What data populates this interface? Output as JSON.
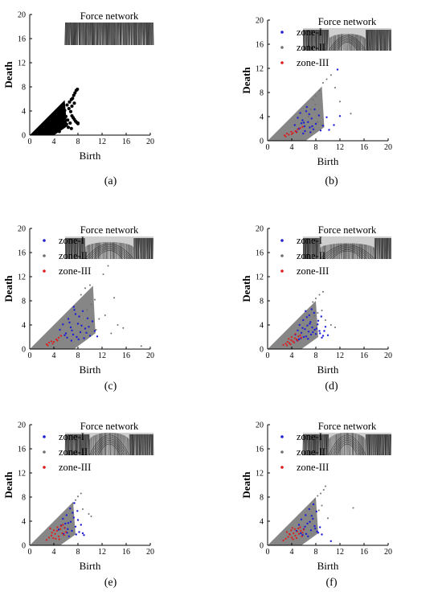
{
  "colors": {
    "zone-I": "#1f1fd6",
    "zone-II": "#707070",
    "zone-III": "#e01a1a",
    "all-points": "#000000",
    "diagonal-band": "#808080",
    "force-network-dark": "#141414",
    "force-network-light": "#d8d8d8"
  },
  "chart_data": [
    {
      "panel_label": "(a)",
      "type": "scatter",
      "xlabel": "Birth",
      "ylabel": "Death",
      "xlim": [
        0,
        20
      ],
      "ylim": [
        0,
        20
      ],
      "xticks": [
        "0",
        "4",
        "8",
        "12",
        "16",
        "20"
      ],
      "yticks": [
        "0",
        "4",
        "8",
        "12",
        "16",
        "20"
      ],
      "grid": false,
      "inset": {
        "title": "Force network",
        "shape": "flat"
      },
      "legend": [],
      "series": [
        {
          "key": "all",
          "color_key": "all-points",
          "diagonal_band_max": 5.8,
          "x": [
            6.2,
            6.5,
            6.8,
            7.0,
            7.2,
            7.4,
            7.6,
            7.8,
            8.0,
            6.6,
            6.9,
            7.1,
            7.3,
            7.5,
            6.0,
            6.3,
            5.8,
            7.7,
            7.9,
            5.5,
            6.1,
            6.7,
            7.0,
            7.4,
            8.0,
            5.2,
            5.6,
            6.4,
            6.9,
            4.9
          ],
          "y": [
            5.0,
            4.4,
            3.9,
            3.2,
            2.9,
            2.6,
            2.3,
            2.1,
            2.0,
            5.5,
            5.9,
            6.1,
            6.6,
            7.0,
            3.1,
            2.5,
            4.1,
            7.4,
            7.6,
            3.6,
            1.8,
            2.0,
            4.8,
            5.3,
            1.9,
            1.5,
            2.2,
            1.3,
            1.1,
            0.6
          ],
          "size": 3.2
        }
      ]
    },
    {
      "panel_label": "(b)",
      "type": "scatter",
      "xlabel": "Birth",
      "ylabel": "Death",
      "xlim": [
        0,
        20
      ],
      "ylim": [
        0,
        20
      ],
      "xticks": [
        "0",
        "4",
        "8",
        "12",
        "16",
        "20"
      ],
      "yticks": [
        "0",
        "4",
        "8",
        "12",
        "16",
        "20"
      ],
      "grid": false,
      "inset": {
        "title": "Force network",
        "shape": "arch-small"
      },
      "legend": [
        "zone-I",
        "zone-II",
        "zone-III"
      ],
      "series": [
        {
          "key": "zone-II",
          "color_key": "zone-II",
          "diagonal_band_max": 9.0,
          "x": [
            7.5,
            8.0,
            8.6,
            9.2,
            9.8,
            10.5,
            11.2,
            12.0,
            13.8,
            7.2,
            8.3,
            9.0,
            6.8,
            7.9
          ],
          "y": [
            6.8,
            7.4,
            8.3,
            9.6,
            10.2,
            10.9,
            8.8,
            6.5,
            4.5,
            5.2,
            3.1,
            2.6,
            4.0,
            6.0
          ],
          "size": 1.6
        },
        {
          "key": "zone-I",
          "color_key": "zone-I",
          "x": [
            4.5,
            5.0,
            5.4,
            5.8,
            6.1,
            6.4,
            6.7,
            7.0,
            7.3,
            7.6,
            8.0,
            8.5,
            9.2,
            10.2,
            11.6,
            12.0,
            6.2,
            5.6,
            7.8,
            4.8,
            6.9,
            5.2,
            7.1,
            6.0,
            8.8,
            9.8,
            11.0,
            6.5,
            7.4,
            5.9
          ],
          "y": [
            2.6,
            3.8,
            4.6,
            3.4,
            2.4,
            4.9,
            3.1,
            2.2,
            3.7,
            1.9,
            2.8,
            4.2,
            2.5,
            1.8,
            11.8,
            4.1,
            1.6,
            2.9,
            5.2,
            1.5,
            4.4,
            2.0,
            1.4,
            3.0,
            1.7,
            3.9,
            2.6,
            5.6,
            2.4,
            1.2
          ],
          "size": 1.9
        },
        {
          "key": "zone-III",
          "color_key": "zone-III",
          "x": [
            2.8,
            3.2,
            3.5,
            3.9,
            4.2,
            4.6,
            5.0,
            5.4,
            5.8,
            3.0,
            4.0,
            4.8
          ],
          "y": [
            0.9,
            1.2,
            1.0,
            1.5,
            1.3,
            1.6,
            1.9,
            2.1,
            2.3,
            0.7,
            1.1,
            1.4
          ],
          "size": 1.7
        }
      ]
    },
    {
      "panel_label": "(c)",
      "type": "scatter",
      "xlabel": "Birth",
      "ylabel": "Death",
      "xlim": [
        0,
        20
      ],
      "ylim": [
        0,
        20
      ],
      "xticks": [
        "0",
        "4",
        "8",
        "12",
        "16",
        "20"
      ],
      "yticks": [
        "0",
        "4",
        "8",
        "12",
        "16",
        "20"
      ],
      "grid": false,
      "inset": {
        "title": "Force network",
        "shape": "arch-mid"
      },
      "legend": [
        "zone-I",
        "zone-II",
        "zone-III"
      ],
      "series": [
        {
          "key": "zone-II",
          "color_key": "zone-II",
          "diagonal_band_max": 10.5,
          "x": [
            8.5,
            9.2,
            10.0,
            10.8,
            11.5,
            12.2,
            13.0,
            14.0,
            14.6,
            15.5,
            18.5,
            9.5,
            11.0,
            12.5,
            13.5,
            10.2
          ],
          "y": [
            9.0,
            10.1,
            10.6,
            8.2,
            5.0,
            12.4,
            13.8,
            8.5,
            4.0,
            3.5,
            0.5,
            6.5,
            3.2,
            5.6,
            2.6,
            7.4
          ],
          "size": 1.6
        },
        {
          "key": "zone-I",
          "color_key": "zone-I",
          "x": [
            5.0,
            5.5,
            6.0,
            6.4,
            6.8,
            7.2,
            7.6,
            8.0,
            8.4,
            8.8,
            9.2,
            9.6,
            10.0,
            10.4,
            6.2,
            7.0,
            7.8,
            8.6,
            9.4,
            5.8,
            6.6,
            7.4,
            8.2,
            9.0,
            10.8,
            11.2,
            7.3,
            8.1,
            6.9,
            9.8
          ],
          "y": [
            3.2,
            4.1,
            2.6,
            5.0,
            3.6,
            2.4,
            5.8,
            4.2,
            2.8,
            6.3,
            3.4,
            5.1,
            2.2,
            4.6,
            1.9,
            3.1,
            2.0,
            3.9,
            2.7,
            2.3,
            4.4,
            6.5,
            5.4,
            1.8,
            3.0,
            2.1,
            7.0,
            1.6,
            1.4,
            3.7
          ],
          "size": 1.9
        },
        {
          "key": "zone-III",
          "color_key": "zone-III",
          "x": [
            2.8,
            3.2,
            3.6,
            4.0,
            4.4,
            4.8,
            5.2,
            3.0,
            3.8,
            4.6
          ],
          "y": [
            0.8,
            1.1,
            1.3,
            1.2,
            1.6,
            1.9,
            2.2,
            0.6,
            0.9,
            1.4
          ],
          "size": 1.7
        }
      ]
    },
    {
      "panel_label": "(d)",
      "type": "scatter",
      "xlabel": "Birth",
      "ylabel": "Death",
      "xlim": [
        0,
        20
      ],
      "ylim": [
        0,
        20
      ],
      "xticks": [
        "0",
        "4",
        "8",
        "12",
        "16",
        "20"
      ],
      "yticks": [
        "0",
        "4",
        "8",
        "12",
        "16",
        "20"
      ],
      "grid": false,
      "inset": {
        "title": "Force network",
        "shape": "arch-large"
      },
      "legend": [
        "zone-I",
        "zone-II",
        "zone-III"
      ],
      "series": [
        {
          "key": "zone-II",
          "color_key": "zone-II",
          "diagonal_band_max": 8.0,
          "x": [
            7.5,
            8.0,
            8.6,
            9.2,
            9.6,
            10.5,
            11.2,
            8.3,
            9.0,
            7.8
          ],
          "y": [
            7.8,
            8.4,
            9.0,
            9.5,
            4.8,
            4.0,
            3.6,
            6.0,
            6.4,
            5.5
          ],
          "size": 1.6
        },
        {
          "key": "zone-I",
          "color_key": "zone-I",
          "x": [
            4.6,
            5.0,
            5.3,
            5.6,
            5.9,
            6.2,
            6.5,
            6.8,
            7.1,
            7.4,
            7.7,
            8.0,
            8.3,
            8.6,
            8.9,
            9.2,
            9.6,
            10.0,
            5.5,
            6.0,
            6.6,
            7.2,
            7.8,
            8.4,
            9.0,
            5.2,
            6.3,
            6.9,
            7.5,
            8.1,
            6.7,
            7.3,
            5.8,
            6.4,
            7.0,
            4.9,
            8.7,
            9.4
          ],
          "y": [
            2.4,
            3.1,
            4.0,
            2.7,
            4.8,
            3.3,
            5.3,
            2.9,
            4.5,
            3.6,
            6.0,
            2.5,
            4.1,
            3.0,
            5.4,
            2.2,
            3.7,
            2.3,
            1.8,
            2.0,
            3.9,
            2.4,
            3.2,
            4.7,
            1.9,
            1.6,
            6.3,
            5.6,
            2.8,
            3.4,
            1.7,
            6.6,
            3.5,
            2.1,
            4.2,
            1.4,
            2.6,
            3.0
          ],
          "size": 1.9
        },
        {
          "key": "zone-III",
          "color_key": "zone-III",
          "x": [
            2.6,
            3.0,
            3.3,
            3.6,
            3.9,
            4.2,
            4.5,
            4.8,
            5.1,
            5.4,
            3.2,
            3.8,
            4.4,
            5.0,
            4.0,
            4.6,
            3.5,
            5.6
          ],
          "y": [
            0.7,
            0.9,
            1.2,
            1.0,
            1.5,
            1.3,
            1.8,
            1.6,
            2.1,
            2.3,
            0.6,
            0.8,
            1.1,
            1.4,
            2.0,
            2.5,
            1.7,
            1.9
          ],
          "size": 1.7
        }
      ]
    },
    {
      "panel_label": "(e)",
      "type": "scatter",
      "xlabel": "Birth",
      "ylabel": "Death",
      "xlim": [
        0,
        20
      ],
      "ylim": [
        0,
        20
      ],
      "xticks": [
        "0",
        "4",
        "8",
        "12",
        "16",
        "20"
      ],
      "yticks": [
        "0",
        "4",
        "8",
        "12",
        "16",
        "20"
      ],
      "grid": false,
      "inset": {
        "title": "Force network",
        "shape": "funnel"
      },
      "legend": [
        "zone-I",
        "zone-II",
        "zone-III"
      ],
      "series": [
        {
          "key": "zone-II",
          "color_key": "zone-II",
          "diagonal_band_max": 7.2,
          "x": [
            7.2,
            7.6,
            8.0,
            8.5,
            9.8,
            10.2,
            8.8
          ],
          "y": [
            7.0,
            7.5,
            8.1,
            8.6,
            5.2,
            4.8,
            6.0
          ],
          "size": 1.6
        },
        {
          "key": "zone-I",
          "color_key": "zone-I",
          "x": [
            4.8,
            5.2,
            5.5,
            5.8,
            6.1,
            6.4,
            6.7,
            7.0,
            7.3,
            7.6,
            7.9,
            8.2,
            8.5,
            8.8,
            9.0,
            5.6,
            6.2,
            6.8,
            7.4,
            8.0,
            6.5,
            7.1,
            5.9,
            7.7,
            6.3
          ],
          "y": [
            2.6,
            3.3,
            4.4,
            2.9,
            5.0,
            3.7,
            6.1,
            2.4,
            4.6,
            3.1,
            5.7,
            2.2,
            3.4,
            2.0,
            1.7,
            1.9,
            2.1,
            3.9,
            7.0,
            4.2,
            1.5,
            5.4,
            3.6,
            1.8,
            2.7
          ],
          "size": 1.9
        },
        {
          "key": "zone-III",
          "color_key": "zone-III",
          "x": [
            2.8,
            3.2,
            3.6,
            3.9,
            4.2,
            4.5,
            4.8,
            5.1,
            5.4,
            5.7,
            6.0,
            3.4,
            4.0,
            4.6,
            5.2,
            5.8,
            4.3,
            4.9,
            3.7,
            5.5
          ],
          "y": [
            0.9,
            1.3,
            1.6,
            1.2,
            1.9,
            2.4,
            1.5,
            2.7,
            2.0,
            1.7,
            2.2,
            2.8,
            2.5,
            3.0,
            3.2,
            2.9,
            1.1,
            1.0,
            2.1,
            3.4
          ],
          "size": 1.7
        }
      ]
    },
    {
      "panel_label": "(f)",
      "type": "scatter",
      "xlabel": "Birth",
      "ylabel": "Death",
      "xlim": [
        0,
        20
      ],
      "ylim": [
        0,
        20
      ],
      "xticks": [
        "0",
        "4",
        "8",
        "12",
        "16",
        "20"
      ],
      "yticks": [
        "0",
        "4",
        "8",
        "12",
        "16",
        "20"
      ],
      "grid": false,
      "inset": {
        "title": "Force network",
        "shape": "funnel-deep"
      },
      "legend": [
        "zone-I",
        "zone-II",
        "zone-III"
      ],
      "series": [
        {
          "key": "zone-II",
          "color_key": "zone-II",
          "diagonal_band_max": 8.0,
          "x": [
            7.8,
            8.3,
            8.8,
            9.3,
            9.6,
            10.0,
            14.2,
            9.0,
            8.5
          ],
          "y": [
            7.6,
            8.2,
            8.6,
            9.2,
            9.8,
            4.5,
            6.2,
            6.6,
            5.8
          ],
          "size": 1.6
        },
        {
          "key": "zone-I",
          "color_key": "zone-I",
          "x": [
            4.8,
            5.2,
            5.6,
            6.0,
            6.3,
            6.6,
            6.9,
            7.2,
            7.5,
            7.8,
            8.1,
            8.4,
            8.7,
            9.0,
            5.8,
            6.4,
            7.0,
            7.6,
            8.2,
            6.7,
            7.3,
            5.5,
            7.9,
            10.5,
            6.2
          ],
          "y": [
            2.4,
            3.4,
            4.3,
            2.7,
            5.0,
            3.6,
            6.0,
            2.5,
            4.4,
            3.2,
            5.6,
            2.1,
            3.0,
            1.8,
            1.7,
            1.9,
            3.9,
            6.8,
            2.3,
            1.5,
            4.9,
            2.0,
            2.8,
            0.7,
            3.1
          ],
          "size": 1.9
        },
        {
          "key": "zone-III",
          "color_key": "zone-III",
          "x": [
            2.6,
            3.0,
            3.4,
            3.7,
            4.0,
            4.3,
            4.6,
            4.9,
            5.2,
            5.5,
            5.8,
            3.2,
            3.9,
            4.5,
            5.1,
            5.7,
            4.2,
            4.8,
            3.6,
            5.4,
            6.0,
            4.1
          ],
          "y": [
            0.8,
            1.1,
            1.4,
            1.8,
            1.3,
            2.0,
            1.6,
            2.3,
            1.9,
            2.4,
            2.1,
            2.2,
            2.5,
            2.7,
            2.8,
            1.5,
            1.0,
            1.2,
            1.9,
            3.0,
            2.6,
            2.9
          ],
          "size": 1.7
        }
      ]
    }
  ]
}
